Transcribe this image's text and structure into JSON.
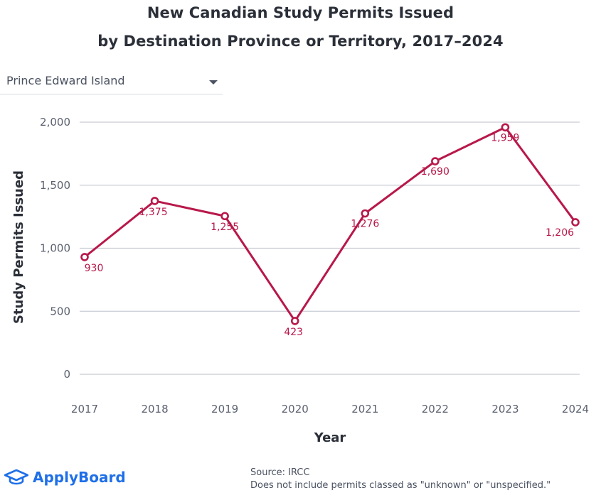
{
  "title_line1": "New Canadian Study Permits Issued",
  "title_line2": "by Destination Province or Territory, 2017–2024",
  "dropdown": {
    "selected": "Prince Edward Island"
  },
  "chart_data": {
    "type": "line",
    "x": [
      "2017",
      "2018",
      "2019",
      "2020",
      "2021",
      "2022",
      "2023",
      "2024"
    ],
    "series": [
      {
        "values": [
          930,
          1375,
          1255,
          423,
          1276,
          1690,
          1959,
          1206
        ],
        "labels": [
          "930",
          "1,375",
          "1,255",
          "423",
          "1,276",
          "1,690",
          "1,959",
          "1,206"
        ]
      }
    ],
    "xlabel": "Year",
    "ylabel": "Study Permits Issued",
    "ylim": [
      0,
      2000
    ],
    "yticks": [
      0,
      500,
      1000,
      1500,
      2000
    ],
    "ytick_labels": [
      "0",
      "500",
      "1,000",
      "1,500",
      "2,000"
    ],
    "grid": "horizontal",
    "line_color": "#b8184a",
    "grid_color": "#c9ccd4"
  },
  "footer": {
    "brand": "ApplyBoard",
    "brand_color": "#1e6fe8",
    "source": "Source: IRCC",
    "note": "Does not include permits classed as \"unknown\" or \"unspecified.\""
  }
}
